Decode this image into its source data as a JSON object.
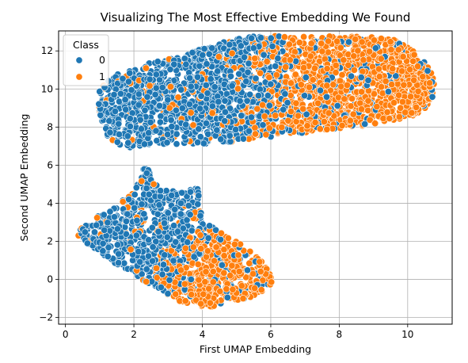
{
  "chart_data": {
    "type": "scatter",
    "title": "Visualizing The Most Effective Embedding We Found",
    "xlabel": "First UMAP Embedding",
    "ylabel": "Second UMAP Embedding",
    "xlim": [
      -0.2,
      11.3
    ],
    "ylim": [
      -2.35,
      13.05
    ],
    "xticks": [
      0,
      2,
      4,
      6,
      8,
      10
    ],
    "yticks": [
      -2,
      0,
      2,
      4,
      6,
      8,
      10,
      12
    ],
    "grid": true,
    "legend": {
      "title": "Class",
      "placement": "top-left",
      "entries": [
        "0",
        "1"
      ]
    },
    "series": [
      {
        "name": "0",
        "color": "#1f77b4",
        "clusters": [
          {
            "region": "upper",
            "x_range": [
              0.9,
              7.7
            ],
            "y_range": [
              6.9,
              12.7
            ],
            "density": "dense"
          },
          {
            "region": "lower",
            "x_range": [
              0.2,
              4.6
            ],
            "y_range": [
              -1.0,
              6.3
            ],
            "density": "dense"
          }
        ]
      },
      {
        "name": "1",
        "color": "#ff7f0e",
        "clusters": [
          {
            "region": "upper",
            "x_range": [
              2.5,
              10.8
            ],
            "y_range": [
              7.2,
              12.8
            ],
            "density": "dense"
          },
          {
            "region": "lower",
            "x_range": [
              1.3,
              6.1
            ],
            "y_range": [
              -1.6,
              4.9
            ],
            "density": "dense"
          }
        ]
      }
    ]
  }
}
